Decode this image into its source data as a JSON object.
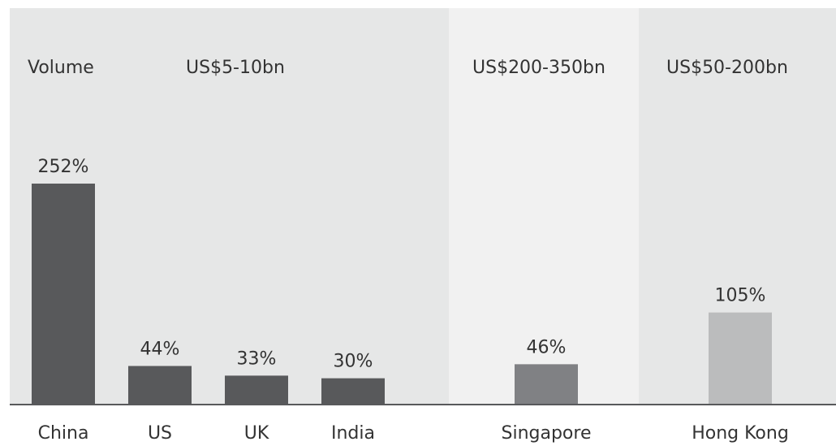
{
  "chart_data": {
    "type": "bar",
    "title": "",
    "xlabel": "",
    "ylabel": "",
    "axis_label": "Volume",
    "categories": [
      "China",
      "US",
      "UK",
      "India",
      "Singapore",
      "Hong Kong"
    ],
    "values": [
      252,
      44,
      33,
      30,
      46,
      105
    ],
    "value_labels": [
      "252%",
      "44%",
      "33%",
      "30%",
      "46%",
      "105%"
    ],
    "units": "%",
    "grid": false,
    "groups": [
      {
        "label": "US$5-10bn",
        "members": [
          "China",
          "US",
          "UK",
          "India"
        ],
        "background": "#e6e7e7",
        "bar_color": "#58595b"
      },
      {
        "label": "US$200-350bn",
        "members": [
          "Singapore"
        ],
        "background": "#f1f1f1",
        "bar_color": "#808184"
      },
      {
        "label": "US$50-200bn",
        "members": [
          "Hong Kong"
        ],
        "background": "#e6e7e7",
        "bar_color": "#bbbcbd"
      }
    ],
    "ylim": [
      0,
      280
    ]
  }
}
